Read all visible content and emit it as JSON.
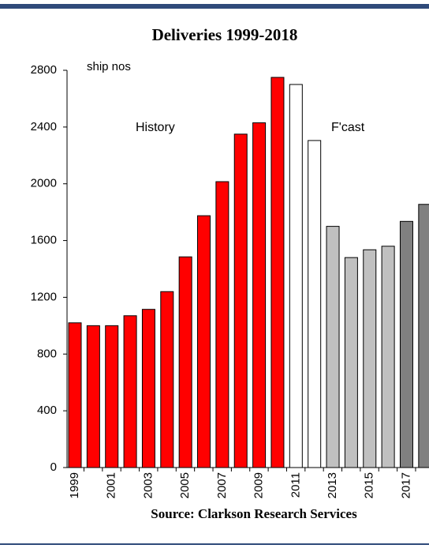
{
  "chart_data": {
    "type": "bar",
    "title": "Deliveries 1999-2018",
    "categories": [
      "1999",
      null,
      "2001",
      null,
      "2003",
      null,
      "2005",
      null,
      "2007",
      null,
      "2009",
      null,
      "2011",
      null,
      "2013",
      null,
      "2015",
      null,
      "2017",
      null
    ],
    "values": [
      1020,
      1000,
      1000,
      1070,
      1115,
      1240,
      1485,
      1775,
      2015,
      2350,
      2430,
      2750,
      2700,
      2305,
      1700,
      1480,
      1535,
      1560,
      1735,
      1855
    ],
    "colors": [
      "#ff0000",
      "#ff0000",
      "#ff0000",
      "#ff0000",
      "#ff0000",
      "#ff0000",
      "#ff0000",
      "#ff0000",
      "#ff0000",
      "#ff0000",
      "#ff0000",
      "#ff0000",
      "#ffffff",
      "#ffffff",
      "#c0c0c0",
      "#c0c0c0",
      "#c0c0c0",
      "#c0c0c0",
      "#808080",
      "#808080"
    ],
    "ylim": [
      0,
      2800
    ],
    "yticks": [
      0,
      400,
      800,
      1200,
      1600,
      2000,
      2400,
      2800
    ],
    "annotations": [
      "ship nos",
      "History",
      "F'cast"
    ],
    "source": "Source: Clarkson Research Services"
  }
}
